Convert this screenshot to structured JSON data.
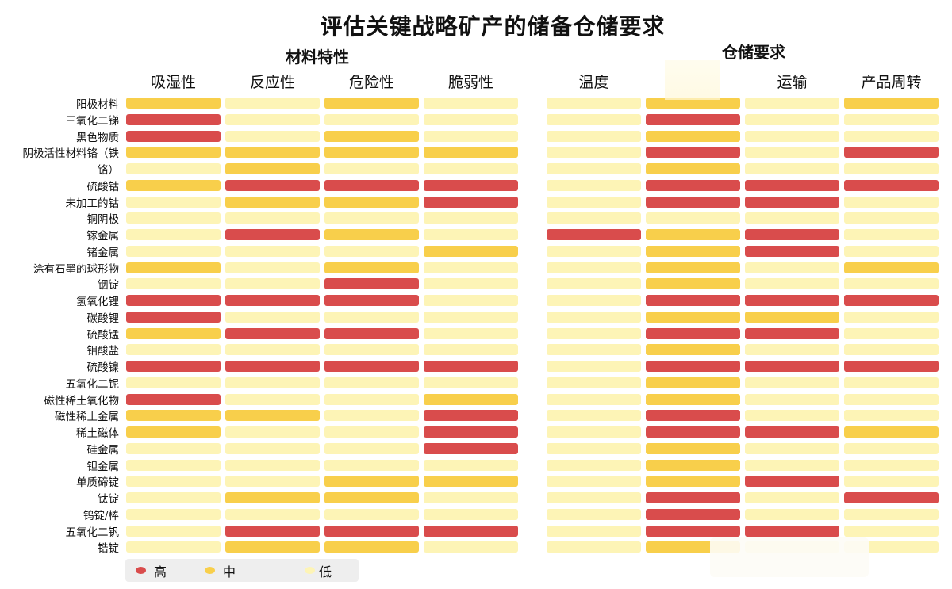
{
  "chart_data": {
    "type": "heatmap",
    "title": "评估关键战略矿产的储备仓储要求",
    "groups": [
      {
        "name": "材料特性",
        "columns": [
          "吸湿性",
          "反应性",
          "危险性",
          "脆弱性"
        ]
      },
      {
        "name": "仓储要求",
        "columns": [
          "温度",
          "",
          "运输",
          "产品周转"
        ]
      }
    ],
    "levels": [
      "高",
      "中",
      "低"
    ],
    "colors": {
      "高": "#d94c4c",
      "中": "#f8cf4b",
      "低": "#fdf4b6"
    },
    "rows": [
      {
        "label": "阳极材料",
        "values": [
          "中",
          "低",
          "中",
          "低",
          "低",
          "中",
          "低",
          "中"
        ]
      },
      {
        "label": "三氧化二锑",
        "values": [
          "高",
          "低",
          "低",
          "低",
          "低",
          "高",
          "低",
          "低"
        ]
      },
      {
        "label": "黑色物质",
        "values": [
          "高",
          "低",
          "中",
          "低",
          "低",
          "中",
          "低",
          "低"
        ]
      },
      {
        "label": "阴极活性材料铬（铁",
        "values": [
          "中",
          "中",
          "中",
          "中",
          "低",
          "高",
          "低",
          "高"
        ]
      },
      {
        "label": "铬）",
        "values": [
          "低",
          "中",
          "低",
          "低",
          "低",
          "中",
          "低",
          "低"
        ]
      },
      {
        "label": "硫酸钴",
        "values": [
          "中",
          "高",
          "高",
          "高",
          "低",
          "高",
          "高",
          "高"
        ]
      },
      {
        "label": "未加工的钴",
        "values": [
          "低",
          "中",
          "中",
          "高",
          "低",
          "高",
          "高",
          "低"
        ]
      },
      {
        "label": "铜阴极",
        "values": [
          "低",
          "低",
          "低",
          "低",
          "低",
          "低",
          "低",
          "低"
        ]
      },
      {
        "label": "镓金属",
        "values": [
          "低",
          "高",
          "中",
          "低",
          "高",
          "中",
          "高",
          "低"
        ]
      },
      {
        "label": "锗金属",
        "values": [
          "低",
          "低",
          "低",
          "中",
          "低",
          "中",
          "高",
          "低"
        ]
      },
      {
        "label": "涂有石墨的球形物",
        "values": [
          "中",
          "低",
          "中",
          "低",
          "低",
          "中",
          "低",
          "中"
        ]
      },
      {
        "label": "铟锭",
        "values": [
          "低",
          "低",
          "高",
          "低",
          "低",
          "中",
          "低",
          "低"
        ]
      },
      {
        "label": "氢氧化锂",
        "values": [
          "高",
          "高",
          "高",
          "低",
          "低",
          "高",
          "高",
          "高"
        ]
      },
      {
        "label": "碳酸锂",
        "values": [
          "高",
          "低",
          "低",
          "低",
          "低",
          "中",
          "中",
          "低"
        ]
      },
      {
        "label": "硫酸锰",
        "values": [
          "中",
          "高",
          "高",
          "低",
          "低",
          "高",
          "高",
          "低"
        ]
      },
      {
        "label": "钼酸盐",
        "values": [
          "低",
          "低",
          "低",
          "低",
          "低",
          "中",
          "低",
          "低"
        ]
      },
      {
        "label": "硫酸镍",
        "values": [
          "高",
          "高",
          "高",
          "高",
          "低",
          "高",
          "高",
          "高"
        ]
      },
      {
        "label": "五氧化二铌",
        "values": [
          "低",
          "低",
          "低",
          "低",
          "低",
          "中",
          "低",
          "低"
        ]
      },
      {
        "label": "磁性稀土氧化物",
        "values": [
          "高",
          "低",
          "低",
          "中",
          "低",
          "中",
          "低",
          "低"
        ]
      },
      {
        "label": "磁性稀土金属",
        "values": [
          "中",
          "中",
          "低",
          "高",
          "低",
          "高",
          "低",
          "低"
        ]
      },
      {
        "label": "稀土磁体",
        "values": [
          "中",
          "低",
          "低",
          "高",
          "低",
          "高",
          "高",
          "中"
        ]
      },
      {
        "label": "硅金属",
        "values": [
          "低",
          "低",
          "低",
          "高",
          "低",
          "中",
          "低",
          "低"
        ]
      },
      {
        "label": "钽金属",
        "values": [
          "低",
          "低",
          "低",
          "低",
          "低",
          "中",
          "低",
          "低"
        ]
      },
      {
        "label": "单质碲锭",
        "values": [
          "低",
          "低",
          "中",
          "中",
          "低",
          "中",
          "高",
          "低"
        ]
      },
      {
        "label": "钛锭",
        "values": [
          "低",
          "中",
          "中",
          "低",
          "低",
          "高",
          "低",
          "高"
        ]
      },
      {
        "label": "钨锭/棒",
        "values": [
          "低",
          "低",
          "低",
          "低",
          "低",
          "高",
          "低",
          "低"
        ]
      },
      {
        "label": "五氧化二钒",
        "values": [
          "低",
          "高",
          "高",
          "高",
          "低",
          "高",
          "高",
          "低"
        ]
      },
      {
        "label": "锆锭",
        "values": [
          "低",
          "中",
          "中",
          "低",
          "低",
          "中",
          "低",
          "低"
        ]
      }
    ]
  }
}
